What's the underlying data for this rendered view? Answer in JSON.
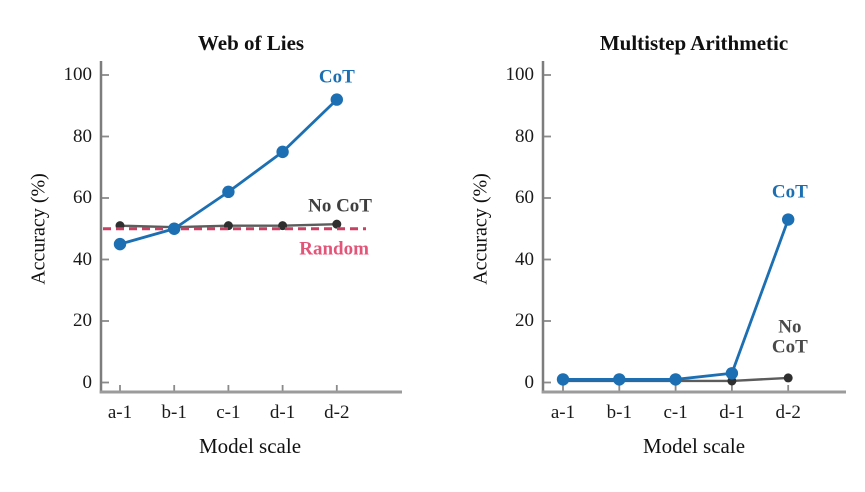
{
  "figure": {
    "background": "#ffffff",
    "accent_blue": "#1c6fb2",
    "accent_gray": "#5c5c5c",
    "accent_crimson": "#c94063"
  },
  "chart_data": [
    {
      "type": "line",
      "title": "Web of Lies",
      "xlabel": "Model scale",
      "ylabel": "Accuracy (%)",
      "categories": [
        "a-1",
        "b-1",
        "c-1",
        "d-1",
        "d-2"
      ],
      "yticks": [
        0,
        20,
        40,
        60,
        80,
        100
      ],
      "ylim": [
        0,
        105
      ],
      "grid": false,
      "legend_position": "inline-annotations",
      "series": [
        {
          "name": "No CoT",
          "values": [
            51,
            50.5,
            51,
            51,
            51.5
          ],
          "color": "#5c5c5c",
          "marker_color": "#2f2f2f",
          "marker_r": 4.5,
          "width": 2.4
        },
        {
          "name": "Random",
          "type": "hline",
          "value": 50,
          "color": "#c94063",
          "dash": "8 5",
          "width": 3
        },
        {
          "name": "CoT",
          "values": [
            45,
            50,
            62,
            75,
            92
          ],
          "color": "#1c6fb2",
          "marker_r": 6.2,
          "width": 2.8
        }
      ],
      "annotations": [
        {
          "text": "CoT",
          "xi": 4.0,
          "y": 99,
          "color": "#1c6fb2"
        },
        {
          "text": "No CoT",
          "xi": 4.06,
          "y": 57.2,
          "color": "#3f3f3f"
        },
        {
          "text": "Random",
          "xi": 3.95,
          "y": 43.1,
          "color": "#e25578"
        }
      ]
    },
    {
      "type": "line",
      "title": "Multistep Arithmetic",
      "xlabel": "Model scale",
      "ylabel": "Accuracy (%)",
      "categories": [
        "a-1",
        "b-1",
        "c-1",
        "d-1",
        "d-2"
      ],
      "yticks": [
        0,
        20,
        40,
        60,
        80,
        100
      ],
      "ylim": [
        0,
        105
      ],
      "grid": false,
      "legend_position": "inline-annotations",
      "series": [
        {
          "name": "No CoT",
          "values": [
            0.5,
            0.5,
            0.5,
            0.5,
            1.5
          ],
          "color": "#5c5c5c",
          "marker_color": "#2f2f2f",
          "marker_r": 4.5,
          "width": 2.4
        },
        {
          "name": "CoT",
          "values": [
            1,
            1,
            1,
            3,
            53
          ],
          "color": "#1c6fb2",
          "marker_r": 6.2,
          "width": 2.8
        }
      ],
      "annotations": [
        {
          "text": "CoT",
          "xi": 4.03,
          "y": 61.5,
          "color": "#1c6fb2"
        },
        {
          "text": "No\nCoT",
          "xi": 4.03,
          "y": 14.5,
          "color": "#4a4a4a"
        }
      ]
    }
  ]
}
